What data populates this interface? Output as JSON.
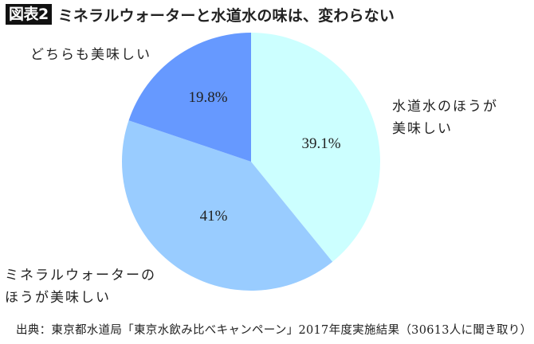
{
  "header": {
    "badge": "図表2",
    "title": "ミネラルウォーターと水道水の味は、変わらない"
  },
  "chart_data": {
    "type": "pie",
    "title": "ミネラルウォーターと水道水の味は、変わらない",
    "categories": [
      "水道水のほうが美味しい",
      "ミネラルウォーターのほうが美味しい",
      "どちらも美味しい"
    ],
    "values": [
      39.1,
      41,
      19.8
    ],
    "value_labels": [
      "39.1%",
      "41%",
      "19.8%"
    ],
    "colors": [
      "#ccffff",
      "#99ccff",
      "#6699ff"
    ],
    "start_angle": "12 o'clock, clockwise",
    "legend": "none (direct labels)"
  },
  "labels": {
    "tap_line1": "水道水のほうが",
    "tap_line2": "美味しい",
    "mineral_line1": "ミネラルウォーターの",
    "mineral_line2": "ほうが美味しい",
    "both": "どちらも美味しい"
  },
  "source": "出典：東京都水道局「東京水飲み比べキャンペーン」2017年度実施結果（30613人に聞き取り）"
}
